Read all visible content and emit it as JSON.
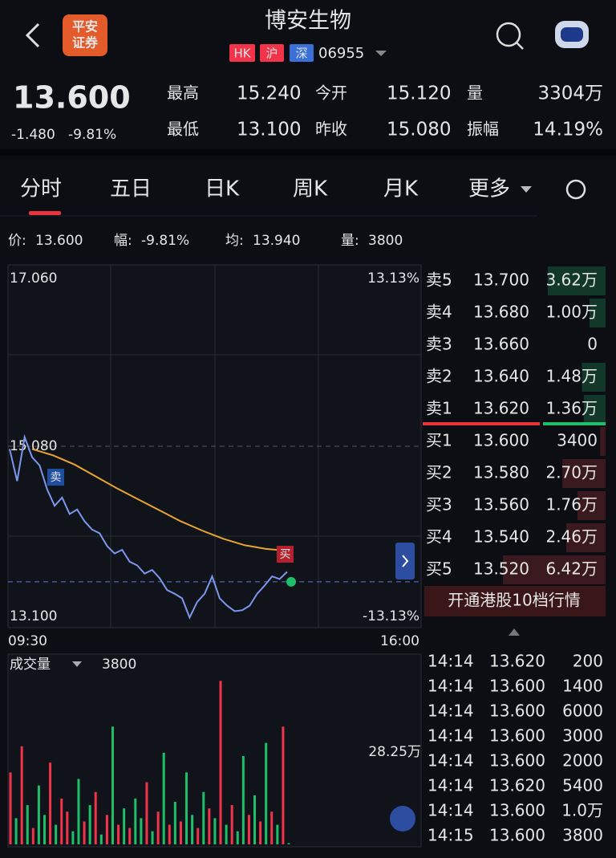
{
  "header": {
    "title": "博安生物",
    "broker": [
      "平安",
      "证券"
    ],
    "badges": [
      "HK",
      "沪",
      "深"
    ],
    "code": "06955"
  },
  "quote": {
    "price": "13.600",
    "change": "-1.480",
    "pct": "-9.81%",
    "stats": [
      {
        "label": "最高",
        "value": "15.240"
      },
      {
        "label": "今开",
        "value": "15.120"
      },
      {
        "label": "量",
        "value": "3304万"
      },
      {
        "label": "最低",
        "value": "13.100"
      },
      {
        "label": "昨收",
        "value": "15.080"
      },
      {
        "label": "振幅",
        "value": "14.19%"
      }
    ]
  },
  "tabs": [
    "分时",
    "五日",
    "日K",
    "周K",
    "月K",
    "更多"
  ],
  "info": [
    {
      "label": "价:",
      "value": "13.600"
    },
    {
      "label": "幅:",
      "value": "-9.81%"
    },
    {
      "label": "均:",
      "value": "13.940"
    },
    {
      "label": "量:",
      "value": "3800"
    }
  ],
  "chart_data": {
    "type": "line",
    "ylim": [
      13.1,
      17.06
    ],
    "yticks": [
      {
        "value": 17.06,
        "label": "17.060"
      },
      {
        "value": 15.08,
        "label": "15.080"
      },
      {
        "value": 13.1,
        "label": "13.100"
      }
    ],
    "right_labels": [
      "13.13%",
      "-13.13%"
    ],
    "x_labels": [
      "09:30",
      "16:00"
    ],
    "last_price": 13.6,
    "markers": [
      "卖",
      "买"
    ],
    "series": [
      {
        "color": "#7b97ec",
        "values": [
          15.05,
          14.7,
          15.18,
          14.96,
          14.87,
          14.61,
          14.43,
          14.52,
          14.34,
          14.39,
          14.26,
          14.17,
          14.13,
          13.99,
          13.91,
          13.95,
          13.82,
          13.78,
          13.69,
          13.73,
          13.64,
          13.51,
          13.47,
          13.42,
          13.21,
          13.38,
          13.47,
          13.66,
          13.42,
          13.34,
          13.28,
          13.29,
          13.34,
          13.47,
          13.56,
          13.66,
          13.63,
          13.71
        ]
      },
      {
        "color": "#e8a532",
        "values": [
          15.05,
          14.98,
          14.88,
          14.75,
          14.62,
          14.5,
          14.38,
          14.26,
          14.16,
          14.07,
          14.0,
          13.96,
          13.94
        ]
      }
    ]
  },
  "volume_chart": {
    "type": "bar",
    "title": "成交量",
    "current": "3800",
    "ylim": [
      0,
      50.8
    ],
    "yticks": [
      {
        "value": 28.25,
        "label": "28.25万"
      }
    ],
    "values": [
      22,
      8,
      30,
      12,
      5,
      18,
      9,
      25,
      6,
      14,
      10,
      4,
      20,
      7,
      12,
      16,
      3,
      9,
      36,
      6,
      11,
      5,
      14,
      8,
      19,
      4,
      10,
      28,
      6,
      13,
      7,
      22,
      9,
      5,
      16,
      11,
      8,
      50,
      6,
      12,
      4,
      27,
      9,
      15,
      7,
      31,
      10,
      6,
      36,
      0.38
    ],
    "up": [
      true,
      false,
      true,
      false,
      true,
      false,
      false,
      true,
      false,
      true,
      true,
      false,
      false,
      true,
      false,
      true,
      false,
      true,
      false,
      true,
      false,
      true,
      false,
      false,
      true,
      false,
      true,
      false,
      true,
      false,
      true,
      false,
      false,
      true,
      false,
      true,
      false,
      true,
      false,
      true,
      false,
      false,
      true,
      false,
      true,
      false,
      true,
      false,
      true,
      false
    ]
  },
  "order_book": {
    "asks": [
      {
        "label": "卖5",
        "price": "13.700",
        "volume": 3.62,
        "volume_label": "3.62万"
      },
      {
        "label": "卖4",
        "price": "13.680",
        "volume": 1.0,
        "volume_label": "1.00万"
      },
      {
        "label": "卖3",
        "price": "13.660",
        "volume": 0
      },
      {
        "label": "卖2",
        "price": "13.640",
        "volume": 1.48,
        "volume_label": "1.48万"
      },
      {
        "label": "卖1",
        "price": "13.620",
        "volume": 1.36,
        "volume_label": "1.36万"
      }
    ],
    "bids": [
      {
        "label": "买1",
        "price": "13.600",
        "volume": 0.34,
        "volume_label": "3400"
      },
      {
        "label": "买2",
        "price": "13.580",
        "volume": 2.7,
        "volume_label": "2.70万"
      },
      {
        "label": "买3",
        "price": "13.560",
        "volume": 1.76,
        "volume_label": "1.76万"
      },
      {
        "label": "买4",
        "price": "13.540",
        "volume": 2.46,
        "volume_label": "2.46万"
      },
      {
        "label": "买5",
        "price": "13.520",
        "volume": 6.42,
        "volume_label": "6.42万"
      }
    ],
    "upgrade": "开通港股10档行情"
  },
  "trades": [
    {
      "time": "14:14",
      "price": "13.620",
      "volume": "200",
      "color": "#f2344a"
    },
    {
      "time": "14:14",
      "price": "13.600",
      "volume": "1400",
      "color": "#1fbf6a"
    },
    {
      "time": "14:14",
      "price": "13.600",
      "volume": "6000",
      "color": "#1fbf6a"
    },
    {
      "time": "14:14",
      "price": "13.600",
      "volume": "3000",
      "color": "#f2344a"
    },
    {
      "time": "14:14",
      "price": "13.600",
      "volume": "2000",
      "color": "#1fbf6a"
    },
    {
      "time": "14:14",
      "price": "13.620",
      "volume": "5400",
      "color": "#f2344a"
    },
    {
      "time": "14:14",
      "price": "13.600",
      "volume": "1.0万",
      "color": "#1fbf6a"
    },
    {
      "time": "14:15",
      "price": "13.600",
      "volume": "3800",
      "color": "#e6e6e6"
    }
  ]
}
